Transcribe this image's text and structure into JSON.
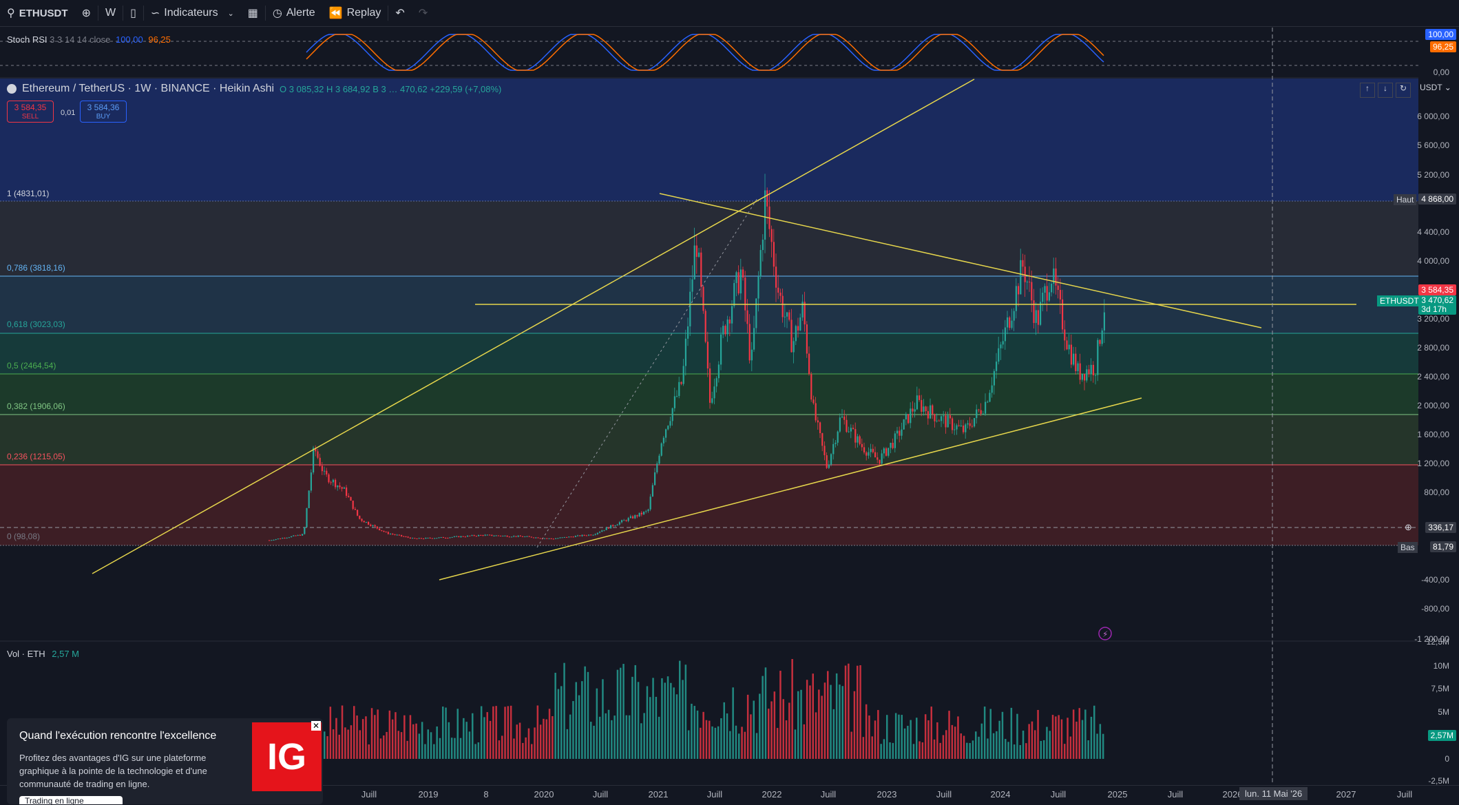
{
  "toolbar": {
    "symbol": "ETHUSDT",
    "interval": "W",
    "indicators": "Indicateurs",
    "alert": "Alerte",
    "replay": "Replay"
  },
  "rsi": {
    "title": "Stoch RSI",
    "params": "3 3 14 14 close",
    "k": "100,00",
    "d": "96,25",
    "scale_top": "100,00",
    "scale_mid": "96,25",
    "scale_bottom": "0,00"
  },
  "legend": {
    "title": "Ethereum / TetherUS · 1W · BINANCE · Heikin Ashi",
    "ohlc": "O 3 085,32  H 3 684,92  B 3 …  470,62  +229,59 (+7,08%)",
    "sell_price": "3 584,35",
    "sell_label": "SELL",
    "spread": "0,01",
    "buy_price": "3 584,36",
    "buy_label": "BUY"
  },
  "fib_levels": [
    {
      "label": "1 (4831,01)",
      "color": "#787b86"
    },
    {
      "label": "0,786 (3818,16)",
      "color": "#64b5f6"
    },
    {
      "label": "0,618 (3023,03)",
      "color": "#26a69a"
    },
    {
      "label": "0,5 (2464,54)",
      "color": "#4caf50"
    },
    {
      "label": "0,382 (1906,06)",
      "color": "#81c784"
    },
    {
      "label": "0,236 (1215,05)",
      "color": "#f7525f"
    },
    {
      "label": "0 (98,08)",
      "color": "#787b86"
    }
  ],
  "price_scale": {
    "currency": "USDT",
    "labels": [
      "6 000,00",
      "5 600,00",
      "5 200,00",
      "4 400,00",
      "4 000,00",
      "3 200,00",
      "2 800,00",
      "2 400,00",
      "2 000,00",
      "1 600,00",
      "1 200,00",
      "800,00",
      "-400,00",
      "-800,00",
      "-1 200,00"
    ],
    "high_label": "Haut",
    "high_value": "4 868,00",
    "sell_tag": "3 584,35",
    "symbol_tag": "ETHUSDT",
    "last_tag": "3 470,62",
    "countdown": "3d 17h",
    "crosshair": "336,17",
    "low_label": "Bas",
    "low_value": "81,79"
  },
  "volume": {
    "title": "Vol · ETH",
    "value": "2,57 M",
    "scale": [
      "12,5M",
      "10M",
      "7,5M",
      "5M",
      "0",
      "-2,5M"
    ],
    "tag": "2,57M"
  },
  "time_axis": [
    "Juill",
    "2019",
    "8",
    "2020",
    "Juill",
    "2021",
    "Juill",
    "2022",
    "Juill",
    "2023",
    "Juill",
    "2024",
    "Juill",
    "2025",
    "Juill",
    "2026",
    "2027",
    "Juill"
  ],
  "crosshair_date": "lun. 11 Mai '26",
  "ad": {
    "title": "Quand l'exécution rencontre l'excellence",
    "body": "Profitez des avantages d'IG sur une plateforme graphique à la pointe de la technologie et d'une communauté de trading en ligne.",
    "logo": "IG",
    "cta": "Trading en ligne"
  },
  "colors": {
    "up": "#26a69a",
    "down": "#f23645",
    "accent": "#2962ff",
    "trend": "#e6d64c"
  }
}
